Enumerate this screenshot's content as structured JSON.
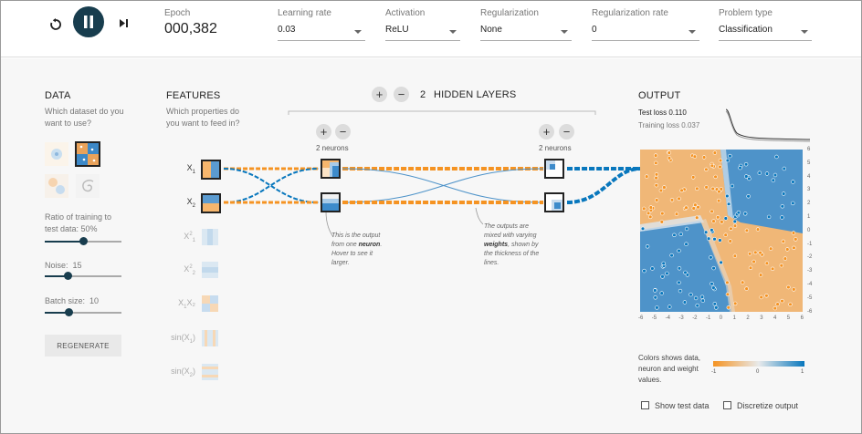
{
  "toolbar": {
    "epoch_label": "Epoch",
    "epoch_value": "000,382",
    "learning_rate": {
      "label": "Learning rate",
      "value": "0.03"
    },
    "activation": {
      "label": "Activation",
      "value": "ReLU"
    },
    "regularization": {
      "label": "Regularization",
      "value": "None"
    },
    "regularization_rate": {
      "label": "Regularization rate",
      "value": "0"
    },
    "problem_type": {
      "label": "Problem type",
      "value": "Classification"
    }
  },
  "data_panel": {
    "title": "DATA",
    "question": "Which dataset do you want to use?",
    "ratio_label": "Ratio of training to test data:",
    "ratio_value": "50%",
    "ratio_fraction": 0.5,
    "noise_label": "Noise:",
    "noise_value": "15",
    "noise_fraction": 0.3,
    "batch_label": "Batch size:",
    "batch_value": "10",
    "batch_fraction": 0.31,
    "regenerate_label": "REGENERATE"
  },
  "features_panel": {
    "title": "FEATURES",
    "question": "Which properties do you want to feed in?",
    "features": [
      {
        "base": "X",
        "sub": "1",
        "sup": "",
        "rest": "",
        "active": true
      },
      {
        "base": "X",
        "sub": "2",
        "sup": "",
        "rest": "",
        "active": true
      },
      {
        "base": "X",
        "sub": "1",
        "sup": "2",
        "rest": "",
        "active": false
      },
      {
        "base": "X",
        "sub": "2",
        "sup": "2",
        "rest": "",
        "active": false
      },
      {
        "base": "X",
        "sub": "1",
        "sup": "",
        "rest": "X₂",
        "active": false
      },
      {
        "base": "sin(X",
        "sub": "1",
        "sup": "",
        "rest": ")",
        "active": false
      },
      {
        "base": "sin(X",
        "sub": "2",
        "sup": "",
        "rest": ")",
        "active": false
      }
    ]
  },
  "network": {
    "hidden_layers_count": "2",
    "hidden_layers_label": "HIDDEN LAYERS",
    "layer1_neurons": "2 neurons",
    "layer2_neurons": "2 neurons",
    "note_neuron_1": "This is the output from one ",
    "note_neuron_bold": "neuron",
    "note_neuron_2": ". Hover to see it larger.",
    "note_weights_1": "The outputs are mixed with varying ",
    "note_weights_bold": "weights",
    "note_weights_2": ", shown by the thickness of the lines."
  },
  "output_panel": {
    "title": "OUTPUT",
    "test_loss_label": "Test loss",
    "test_loss_value": "0.110",
    "training_loss_label": "Training loss",
    "training_loss_value": "0.037",
    "y_ticks": [
      "6",
      "5",
      "4",
      "3",
      "2",
      "1",
      "0",
      "-1",
      "-2",
      "-3",
      "-4",
      "-5",
      "-6"
    ],
    "x_ticks": [
      "-6",
      "-5",
      "-4",
      "-3",
      "-2",
      "-1",
      "0",
      "1",
      "2",
      "3",
      "4",
      "5",
      "6"
    ],
    "colors_caption": "Colors shows data, neuron and weight values.",
    "legend_min": "-1",
    "legend_mid": "0",
    "legend_max": "1",
    "show_test_data": "Show test data",
    "discretize_output": "Discretize output"
  },
  "colors": {
    "orange": "#f59322",
    "blue": "#0877bd",
    "dark": "#183d4e"
  }
}
